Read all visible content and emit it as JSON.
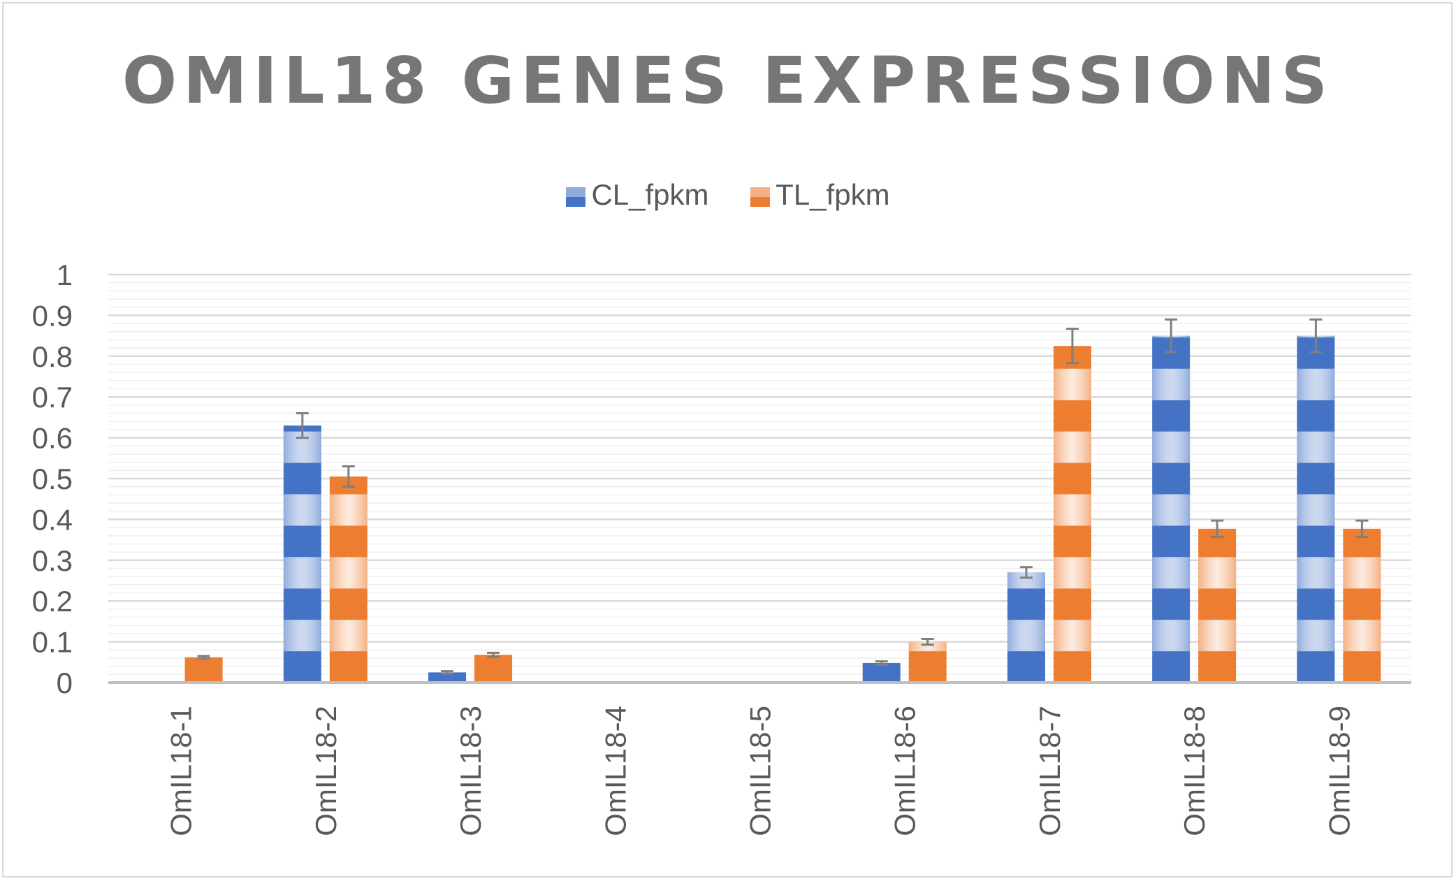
{
  "chart_data": {
    "type": "bar",
    "title": "OMIL18 GENES EXPRESSIONS",
    "categories": [
      "OmIL18-1",
      "OmIL18-2",
      "OmIL18-3",
      "OmIL18-4",
      "OmIL18-5",
      "OmIL18-6",
      "OmIL18-7",
      "OmIL18-8",
      "OmIL18-9"
    ],
    "series": [
      {
        "name": "CL_fpkm",
        "color": "#4472c4",
        "light_color": "#8faadc",
        "values": [
          0,
          0.63,
          0.025,
          0,
          0,
          0.048,
          0.27,
          0.85,
          0.85
        ],
        "error": [
          0,
          0.03,
          0.003,
          0,
          0,
          0.004,
          0.013,
          0.04,
          0.04
        ]
      },
      {
        "name": "TL_fpkm",
        "color": "#ed7d31",
        "light_color": "#f4b183",
        "values": [
          0.062,
          0.505,
          0.068,
          0,
          0,
          0.1,
          0.825,
          0.377,
          0.377
        ],
        "error": [
          0.003,
          0.025,
          0.005,
          0,
          0,
          0.007,
          0.042,
          0.02,
          0.02
        ]
      }
    ],
    "ylim": [
      0,
      1
    ],
    "y_ticks": [
      "0",
      "0.1",
      "0.2",
      "0.3",
      "0.4",
      "0.5",
      "0.6",
      "0.7",
      "0.8",
      "0.9",
      "1"
    ],
    "xlabel": "",
    "ylabel": "",
    "grid": true,
    "legend_position": "top-center",
    "error_bar_color": "#7f7f7f"
  }
}
